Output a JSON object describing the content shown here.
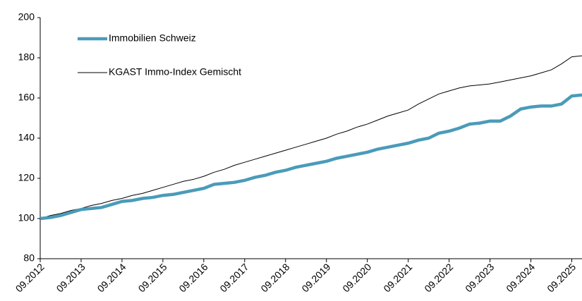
{
  "chart_data": {
    "type": "line",
    "categories": [
      "09.2012",
      null,
      null,
      null,
      "09.2013",
      null,
      null,
      null,
      "09.2014",
      null,
      null,
      null,
      "09.2015",
      null,
      null,
      null,
      "09.2016",
      null,
      null,
      null,
      "09.2017",
      null,
      null,
      null,
      "09.2018",
      null,
      null,
      null,
      "09.2019",
      null,
      null,
      null,
      "09.2020",
      null,
      null,
      null,
      "09.2021",
      null,
      null,
      null,
      "09.2022",
      null,
      null,
      null,
      "09.2023",
      null,
      null,
      null,
      "09.2024",
      null,
      null,
      null,
      "09.2025",
      null
    ],
    "series": [
      {
        "name": "Immobilien Schweiz",
        "color": "#4a9bb9",
        "values": [
          100,
          100.5,
          101.5,
          103,
          104.5,
          105,
          105.5,
          107,
          108.5,
          109,
          110,
          110.5,
          111.5,
          112,
          113,
          114,
          115,
          117,
          117.5,
          118,
          119,
          120.5,
          121.5,
          123,
          124,
          125.5,
          126.5,
          127.5,
          128.5,
          130,
          131,
          132,
          133,
          134.5,
          135.5,
          136.5,
          137.5,
          139,
          140,
          142.5,
          143.5,
          145,
          147,
          147.5,
          148.5,
          148.5,
          151,
          154.5,
          155.5,
          156,
          156,
          157,
          161,
          161.5
        ]
      },
      {
        "name": "KGAST Immo-Index Gemischt",
        "color": "#000000",
        "values": [
          100,
          101.5,
          102.5,
          104,
          105,
          106.5,
          107.5,
          109,
          110,
          111.5,
          112.5,
          114,
          115.5,
          117,
          118.5,
          119.5,
          121,
          123,
          124.5,
          126.5,
          128,
          129.5,
          131,
          132.5,
          134,
          135.5,
          137,
          138.5,
          140,
          142,
          143.5,
          145.5,
          147,
          149,
          151,
          152.5,
          154,
          157,
          159.5,
          162,
          163.5,
          165,
          166,
          166.5,
          167,
          168,
          169,
          170,
          171,
          172.5,
          174,
          177,
          180.5,
          181
        ]
      }
    ],
    "ylim": [
      80,
      200
    ],
    "yticks": [
      80,
      100,
      120,
      140,
      160,
      180,
      200
    ],
    "grid": false,
    "legend": "top-left"
  }
}
